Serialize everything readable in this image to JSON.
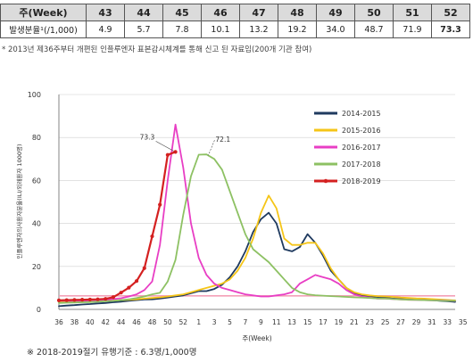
{
  "table": {
    "header_label": "주(Week)",
    "row_label": "발생분율¹(/1,000)",
    "weeks": [
      "43",
      "44",
      "45",
      "46",
      "47",
      "48",
      "49",
      "50",
      "51",
      "52"
    ],
    "rates": [
      "4.9",
      "5.7",
      "7.8",
      "10.1",
      "13.2",
      "19.2",
      "34.0",
      "48.7",
      "71.9",
      "73.3"
    ],
    "footnote": "* 2013년 제36주부터 개편된 인플루엔자 표본감시체계를 통해 신고 된 자료임(200개 기관 참여)"
  },
  "bottom_note": "※ 2018-2019절기 유행기준 : 6.3명/1,000명",
  "chart_data": {
    "type": "line",
    "xlabel": "주(Week)",
    "ylabel": "인플루엔자의사환자분율(ILI/외래환자 1000명)",
    "ylim": [
      0,
      100
    ],
    "yticks": [
      "0",
      "20",
      "40",
      "60",
      "80",
      "100"
    ],
    "xticks": [
      "36",
      "38",
      "40",
      "42",
      "44",
      "46",
      "48",
      "50",
      "52",
      "1",
      "3",
      "5",
      "7",
      "9",
      "11",
      "13",
      "15",
      "17",
      "19",
      "21",
      "23",
      "25",
      "27",
      "29",
      "31",
      "33",
      "35"
    ],
    "threshold": 6.3,
    "threshold_color": "#f4a0b8",
    "legend_position": "right",
    "annotations": [
      {
        "text": "73.3",
        "x": 51,
        "y": 73.3
      },
      {
        "text": "72.1",
        "x": 54,
        "y": 72.1
      }
    ],
    "series": [
      {
        "name": "2014-2015",
        "color": "#1f3a5f",
        "values": [
          1.5,
          1.8,
          2,
          2.3,
          2.5,
          2.8,
          3,
          3.3,
          3.6,
          4,
          4.3,
          4.6,
          4.7,
          5,
          5.5,
          6,
          6.5,
          7.5,
          8.5,
          8.5,
          9.5,
          11.5,
          15,
          20,
          27,
          36,
          42,
          45,
          40,
          28,
          27,
          29,
          35,
          31,
          25,
          18,
          14,
          10,
          7.5,
          6.5,
          6,
          5.5,
          5.5,
          5,
          5,
          5,
          4.8,
          4.5,
          4.3,
          4,
          3.8,
          3.5
        ]
      },
      {
        "name": "2015-2016",
        "color": "#f5c518",
        "values": [
          3.5,
          3.6,
          3.7,
          3.8,
          3.8,
          4,
          4,
          4.1,
          4.3,
          4.5,
          4.7,
          5,
          5.3,
          5.6,
          6,
          6.5,
          7,
          8,
          9,
          10,
          11,
          12,
          14,
          18,
          24,
          33,
          45,
          53,
          47,
          33,
          30,
          30,
          31,
          31,
          26,
          19,
          14,
          10,
          8,
          7,
          6.5,
          6.2,
          6,
          5.8,
          5.5,
          5.3,
          5.1,
          5,
          4.8,
          4.6,
          4.4,
          4.2
        ]
      },
      {
        "name": "2016-2017",
        "color": "#e83ec4",
        "values": [
          4,
          4,
          4,
          4,
          4.2,
          4.3,
          4.5,
          4.8,
          5.2,
          6,
          7,
          9,
          13,
          30,
          60,
          86,
          66,
          40,
          24,
          16,
          12,
          10,
          9,
          8,
          7,
          6.5,
          6,
          6,
          6.5,
          7,
          8,
          12,
          14,
          16,
          15,
          14,
          12,
          9,
          7,
          6,
          5.5,
          5,
          5,
          4.8,
          4.6,
          4.5,
          4.4,
          4.3,
          4.2,
          4.2,
          4.1,
          4.0
        ]
      },
      {
        "name": "2017-2018",
        "color": "#8dc163",
        "values": [
          3,
          3.1,
          3.2,
          3.3,
          3.4,
          3.6,
          3.8,
          4,
          4.3,
          4.7,
          5.3,
          6,
          7,
          7.7,
          13,
          23,
          44,
          62,
          72,
          72.1,
          70,
          65,
          55,
          45,
          35,
          28,
          25,
          22,
          18,
          14,
          10,
          8,
          7,
          6.6,
          6.4,
          6.2,
          6,
          5.8,
          5.6,
          5.5,
          5.3,
          5.1,
          5,
          4.8,
          4.6,
          4.5,
          4.4,
          4.3,
          4.2,
          4.1,
          4.0,
          4.0
        ]
      },
      {
        "name": "2018-2019",
        "color": "#d42020",
        "values": [
          4.2,
          4.3,
          4.4,
          4.5,
          4.6,
          4.7,
          4.9,
          5.7,
          7.8,
          10.1,
          13.2,
          19.2,
          34,
          48.7,
          71.9,
          73.3,
          null,
          null,
          null,
          null,
          null,
          null,
          null,
          null,
          null,
          null,
          null,
          null,
          null,
          null,
          null,
          null,
          null,
          null,
          null,
          null,
          null,
          null,
          null,
          null,
          null,
          null,
          null,
          null,
          null,
          null,
          null,
          null,
          null,
          null,
          null,
          null
        ]
      }
    ]
  }
}
